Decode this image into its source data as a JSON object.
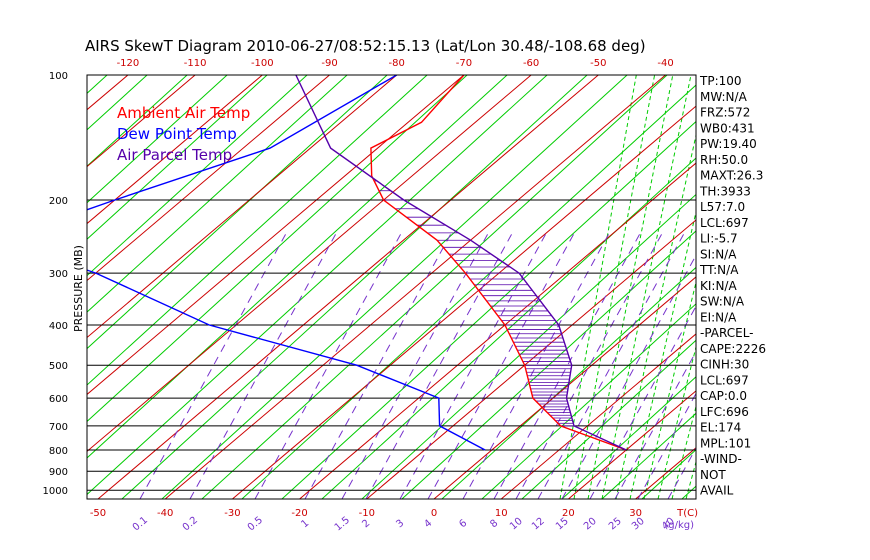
{
  "chart_data": {
    "type": "skewt",
    "title": "AIRS SkewT Diagram 2010-06-27/08:52:15.13 (Lat/Lon 30.48/-108.68 deg)",
    "ylabel": "PRESSURE (MB)",
    "pressure_ticks": [
      100,
      200,
      300,
      400,
      500,
      600,
      700,
      800,
      900,
      1000
    ],
    "top_temp_ticks": [
      -120,
      -110,
      -100,
      -90,
      -80,
      -70,
      -60,
      -50,
      -40
    ],
    "bottom_temp_ticks": [
      -50,
      -40,
      -30,
      -20,
      -10,
      0,
      10,
      20,
      30
    ],
    "bottom_temp_unit": "T(C)",
    "mixing_ratio_labels": [
      "0.1",
      "0.2",
      "0.5",
      "1",
      "1.5",
      "2",
      "3",
      "4",
      "6",
      "8",
      "10",
      "12",
      "15",
      "20",
      "25",
      "30",
      "40"
    ],
    "mixing_ratio_unit": "(g/kg)",
    "legend": [
      {
        "name": "Ambient Air Temp",
        "color": "#ff0000"
      },
      {
        "name": "Dew Point Temp",
        "color": "#0000ff"
      },
      {
        "name": "Air Parcel Temp",
        "color": "#5500aa"
      }
    ],
    "series": [
      {
        "name": "Ambient Air Temp",
        "color": "#ff0000",
        "points": [
          {
            "p": 100,
            "t": -70
          },
          {
            "p": 130,
            "t": -68
          },
          {
            "p": 150,
            "t": -71
          },
          {
            "p": 175,
            "t": -66
          },
          {
            "p": 200,
            "t": -60
          },
          {
            "p": 250,
            "t": -45
          },
          {
            "p": 300,
            "t": -35
          },
          {
            "p": 400,
            "t": -20
          },
          {
            "p": 500,
            "t": -10
          },
          {
            "p": 600,
            "t": -3
          },
          {
            "p": 700,
            "t": 6
          },
          {
            "p": 800,
            "t": 20
          }
        ]
      },
      {
        "name": "Dew Point Temp",
        "color": "#0000ff",
        "points": [
          {
            "p": 100,
            "t": -80
          },
          {
            "p": 150,
            "t": -86
          },
          {
            "p": 200,
            "t": -100
          },
          {
            "p": 250,
            "t": -110
          },
          {
            "p": 300,
            "t": -90
          },
          {
            "p": 400,
            "t": -64
          },
          {
            "p": 500,
            "t": -35
          },
          {
            "p": 600,
            "t": -17
          },
          {
            "p": 700,
            "t": -12
          },
          {
            "p": 800,
            "t": -1
          }
        ]
      },
      {
        "name": "Air Parcel Temp",
        "color": "#5500aa",
        "points": [
          {
            "p": 100,
            "t": -95
          },
          {
            "p": 150,
            "t": -77
          },
          {
            "p": 200,
            "t": -57
          },
          {
            "p": 250,
            "t": -40
          },
          {
            "p": 300,
            "t": -27
          },
          {
            "p": 400,
            "t": -12
          },
          {
            "p": 500,
            "t": -3
          },
          {
            "p": 600,
            "t": 2
          },
          {
            "p": 700,
            "t": 8
          },
          {
            "p": 800,
            "t": 20
          }
        ]
      }
    ],
    "indices": [
      "TP:100",
      "MW:N/A",
      "FRZ:572",
      "WB0:431",
      "PW:19.40",
      "RH:50.0",
      "MAXT:26.3",
      "TH:3933",
      "L57:7.0",
      "LCL:697",
      "LI:-5.7",
      "SI:N/A",
      "TT:N/A",
      "KI:N/A",
      "SW:N/A",
      "EI:N/A",
      "-PARCEL-",
      "CAPE:2226",
      "CINH:30",
      "LCL:697",
      "CAP:0.0",
      "LFC:696",
      "EL:174",
      "MPL:101",
      "-WIND-",
      "NOT",
      "AVAIL"
    ],
    "grid": true
  }
}
